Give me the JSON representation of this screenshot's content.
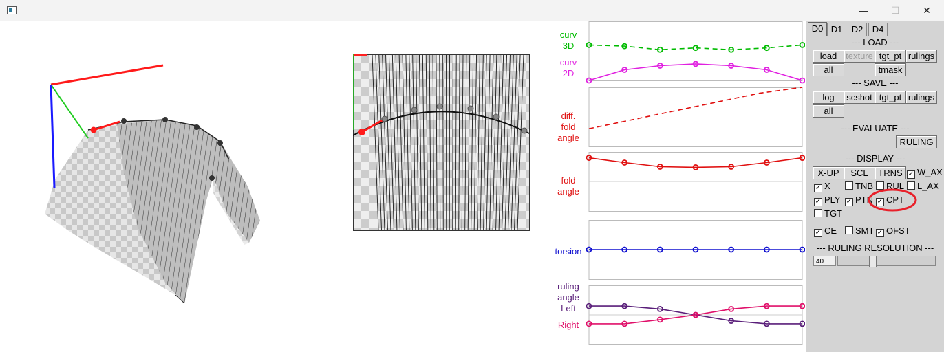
{
  "window": {
    "minimize_glyph": "—",
    "maximize_glyph": "☐",
    "close_glyph": "✕"
  },
  "charts": {
    "curv_3d_label": "curv\n3D",
    "curv_2d_label": "curv\n2D",
    "diff_fold_label": "diff.\nfold\nangle",
    "fold_angle_label": "fold\nangle",
    "torsion_label": "torsion",
    "ruling_left_label": "ruling\nangle\nLeft",
    "ruling_right_label": "Right",
    "colors": {
      "curv3d": "#00bb00",
      "curv2d": "#e020e0",
      "fold": "#e01010",
      "torsion": "#1010d0",
      "left": "#5a1f7a",
      "right": "#e0106a"
    }
  },
  "chart_data": [
    {
      "type": "line",
      "series": [
        {
          "name": "curv 3D",
          "values": [
            0.6,
            0.58,
            0.52,
            0.55,
            0.52,
            0.55,
            0.6
          ]
        },
        {
          "name": "curv 2D",
          "values": [
            0.0,
            0.18,
            0.25,
            0.28,
            0.25,
            0.18,
            0.0
          ]
        }
      ]
    },
    {
      "type": "line",
      "series": [
        {
          "name": "diff. fold angle",
          "values": [
            0.3,
            0.45,
            0.6,
            0.75,
            0.9,
            1.0
          ]
        }
      ]
    },
    {
      "type": "line",
      "series": [
        {
          "name": "fold angle",
          "values": [
            0.9,
            0.82,
            0.75,
            0.74,
            0.75,
            0.82,
            0.9
          ]
        }
      ]
    },
    {
      "type": "line",
      "series": [
        {
          "name": "torsion",
          "values": [
            0.5,
            0.5,
            0.5,
            0.5,
            0.5,
            0.5,
            0.5
          ]
        }
      ]
    },
    {
      "type": "line",
      "series": [
        {
          "name": "Left",
          "values": [
            0.65,
            0.65,
            0.6,
            0.5,
            0.4,
            0.35,
            0.35
          ]
        },
        {
          "name": "Right",
          "values": [
            0.35,
            0.35,
            0.42,
            0.5,
            0.6,
            0.65,
            0.65
          ]
        }
      ]
    }
  ],
  "panel": {
    "tabs": [
      "D0",
      "D1",
      "D2",
      "D4"
    ],
    "load_header": "--- LOAD ---",
    "load_buttons": [
      "load",
      "texture",
      "tgt_pt",
      "rulings",
      "all",
      "tmask"
    ],
    "save_header": "--- SAVE ---",
    "save_buttons": [
      "log",
      "scshot",
      "tgt_pt",
      "rulings",
      "all"
    ],
    "evaluate_header": "--- EVALUATE ---",
    "evaluate_button": "RULING",
    "display_header": "--- DISPLAY ---",
    "display_buttons": [
      "X-UP",
      "SCL",
      "TRNS"
    ],
    "checkboxes": {
      "w_ax": "W_AX",
      "x": "X",
      "tnb": "TNB",
      "rul": "RUL",
      "l_ax": "L_AX",
      "ply": "PLY",
      "ptn": "PTN",
      "cpt": "CPT",
      "tgt": "TGT",
      "ce": "CE",
      "smt": "SMT",
      "ofst": "OFST"
    },
    "check_glyph": "✓",
    "resolution_header": "--- RULING RESOLUTION ---",
    "resolution_value": "40",
    "resolution_level": 0.34
  }
}
